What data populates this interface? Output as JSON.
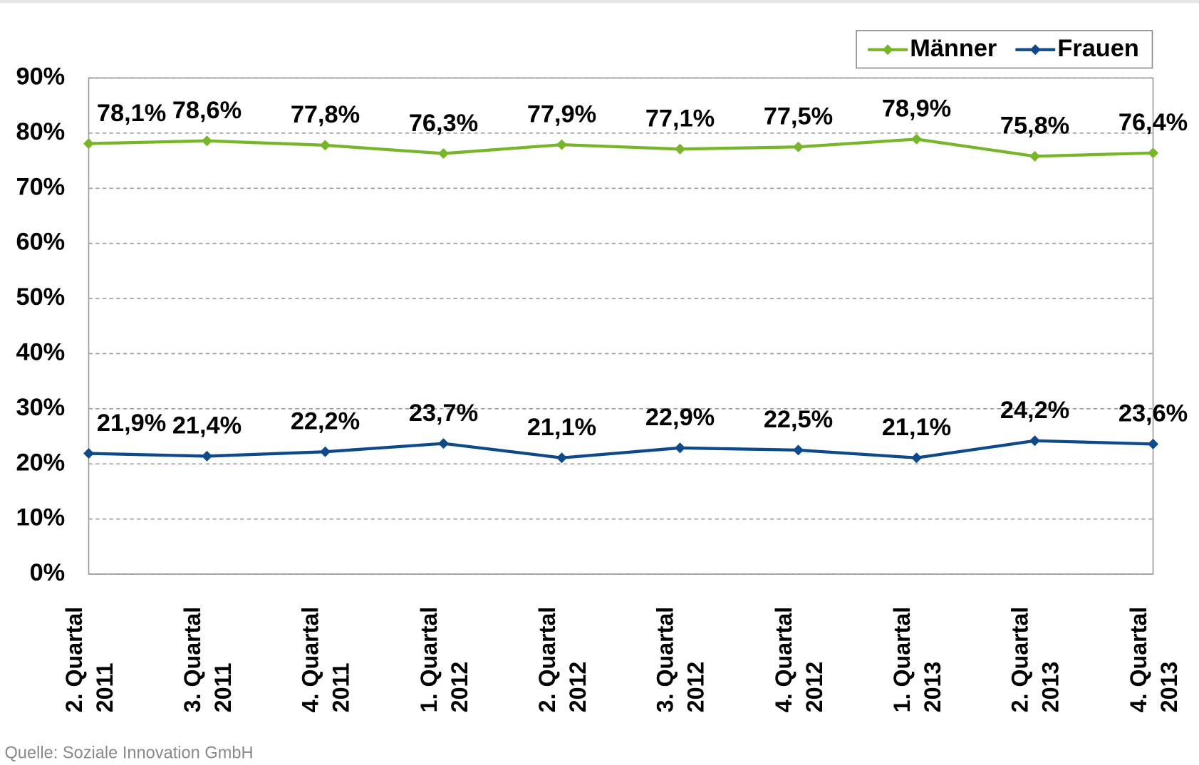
{
  "chart_data": {
    "type": "line",
    "categories": [
      "2. Quartal 2011",
      "3. Quartal 2011",
      "4. Quartal 2011",
      "1. Quartal 2012",
      "2. Quartal 2012",
      "3. Quartal 2012",
      "4. Quartal 2012",
      "1. Quartal 2013",
      "2. Quartal 2013",
      "4. Quartal 2013"
    ],
    "series": [
      {
        "name": "Männer",
        "color": "#77b52a",
        "values": [
          78.1,
          78.6,
          77.8,
          76.3,
          77.9,
          77.1,
          77.5,
          78.9,
          75.8,
          76.4
        ],
        "value_labels": [
          "78,1%",
          "78,6%",
          "77,8%",
          "76,3%",
          "77,9%",
          "77,1%",
          "77,5%",
          "78,9%",
          "75,8%",
          "76,4%"
        ]
      },
      {
        "name": "Frauen",
        "color": "#0d4a8c",
        "values": [
          21.9,
          21.4,
          22.2,
          23.7,
          21.1,
          22.9,
          22.5,
          21.1,
          24.2,
          23.6
        ],
        "value_labels": [
          "21,9%",
          "21,4%",
          "22,2%",
          "23,7%",
          "21,1%",
          "22,9%",
          "22,5%",
          "21,1%",
          "24,2%",
          "23,6%"
        ]
      }
    ],
    "ylim": [
      0,
      90
    ],
    "yticks": [
      {
        "value": 0,
        "label": "0%"
      },
      {
        "value": 10,
        "label": "10%"
      },
      {
        "value": 20,
        "label": "20%"
      },
      {
        "value": 30,
        "label": "30%"
      },
      {
        "value": 40,
        "label": "40%"
      },
      {
        "value": 50,
        "label": "50%"
      },
      {
        "value": 60,
        "label": "60%"
      },
      {
        "value": 70,
        "label": "70%"
      },
      {
        "value": 80,
        "label": "80%"
      },
      {
        "value": 90,
        "label": "90%"
      }
    ],
    "grid": true,
    "legend": "top-right",
    "source": "Quelle: Soziale Innovation GmbH"
  }
}
